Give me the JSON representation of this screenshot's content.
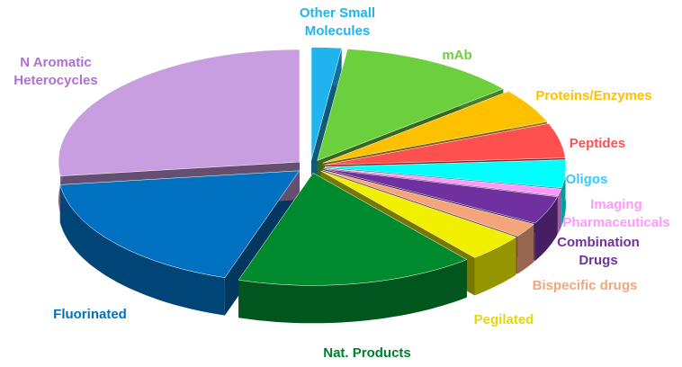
{
  "chart_data": {
    "type": "pie",
    "categories": [
      "Other Small Molecules",
      "mAb",
      "Proteins/Enzymes",
      "Peptides",
      "Oligos",
      "Imaging Pharmaceuticals",
      "Combination Drugs",
      "Bispecific drugs",
      "Pegilated",
      "Nat. Products",
      "Fluorinated",
      "N Aromatic Heterocycles"
    ],
    "values": [
      2,
      12,
      5,
      5,
      4,
      1,
      4,
      2,
      4,
      16,
      18,
      27
    ],
    "colors": [
      "#1fb4f0",
      "#6ccf3d",
      "#ffc000",
      "#ff5050",
      "#00ffff",
      "#ff99ff",
      "#7030a0",
      "#f4a57a",
      "#f0f000",
      "#008a2e",
      "#0070c0",
      "#c89ee0"
    ],
    "label_colors": [
      "#1fb4f0",
      "#6ccf3d",
      "#ffc000",
      "#ff5050",
      "#33ccff",
      "#ff99ff",
      "#7030a0",
      "#f4a57a",
      "#e6d800",
      "#00802b",
      "#0070c0",
      "#b070d0"
    ]
  }
}
